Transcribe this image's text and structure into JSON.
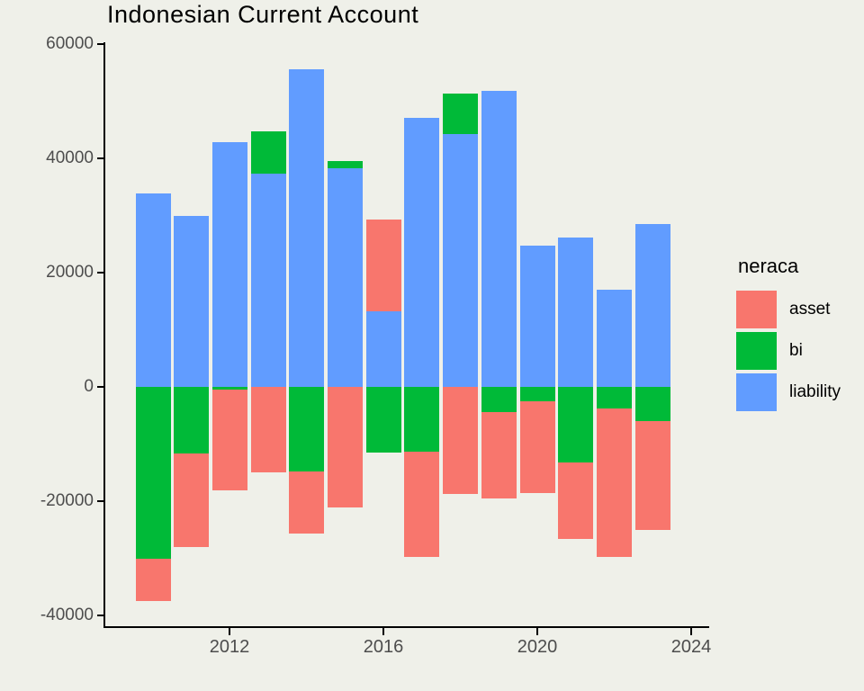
{
  "title": "Indonesian Current Account",
  "legend": {
    "title": "neraca",
    "items": [
      {
        "label": "asset",
        "color": "#F8766D"
      },
      {
        "label": "bi",
        "color": "#00BA38"
      },
      {
        "label": "liability",
        "color": "#619CFF"
      }
    ]
  },
  "colors": {
    "background": "#EFF0E9",
    "axis_line": "#000000",
    "tick_text": "#4D4D4D",
    "title_text": "#000000"
  },
  "chart_data": {
    "type": "bar",
    "subtype": "stacked",
    "title": "Indonesian Current Account",
    "xlabel": "",
    "ylabel": "",
    "legend_title": "neraca",
    "legend_position": "right",
    "grid": false,
    "x": [
      2010,
      2011,
      2012,
      2013,
      2014,
      2015,
      2016,
      2017,
      2018,
      2019,
      2020,
      2021,
      2022,
      2023
    ],
    "series": [
      {
        "name": "liability",
        "color": "#619CFF",
        "values": [
          33900,
          29900,
          42800,
          37400,
          55600,
          38300,
          13200,
          47100,
          44200,
          51800,
          24700,
          26100,
          17000,
          28500
        ]
      },
      {
        "name": "bi",
        "color": "#00BA38",
        "values": [
          -30000,
          -11700,
          -400,
          7300,
          -14800,
          1300,
          -11500,
          -11400,
          7100,
          -4400,
          -2500,
          -13200,
          -3800,
          -5900
        ]
      },
      {
        "name": "asset",
        "color": "#F8766D",
        "values": [
          -7400,
          -16400,
          -17700,
          -15000,
          -10800,
          -21100,
          16100,
          -18300,
          -18800,
          -15200,
          -16100,
          -13400,
          -26000,
          -19200
        ]
      }
    ],
    "y_ticks": [
      60000,
      40000,
      20000,
      0,
      -20000,
      -40000
    ],
    "y_tick_labels": [
      "60000",
      "40000",
      "20000",
      "0",
      "-20000",
      "-40000"
    ],
    "x_ticks": [
      2012,
      2016,
      2020,
      2024
    ],
    "x_tick_labels": [
      "2012",
      "2016",
      "2020",
      "2024"
    ],
    "ylim": [
      -42000,
      62000
    ],
    "xlim": [
      2009.3,
      2024.5
    ]
  }
}
